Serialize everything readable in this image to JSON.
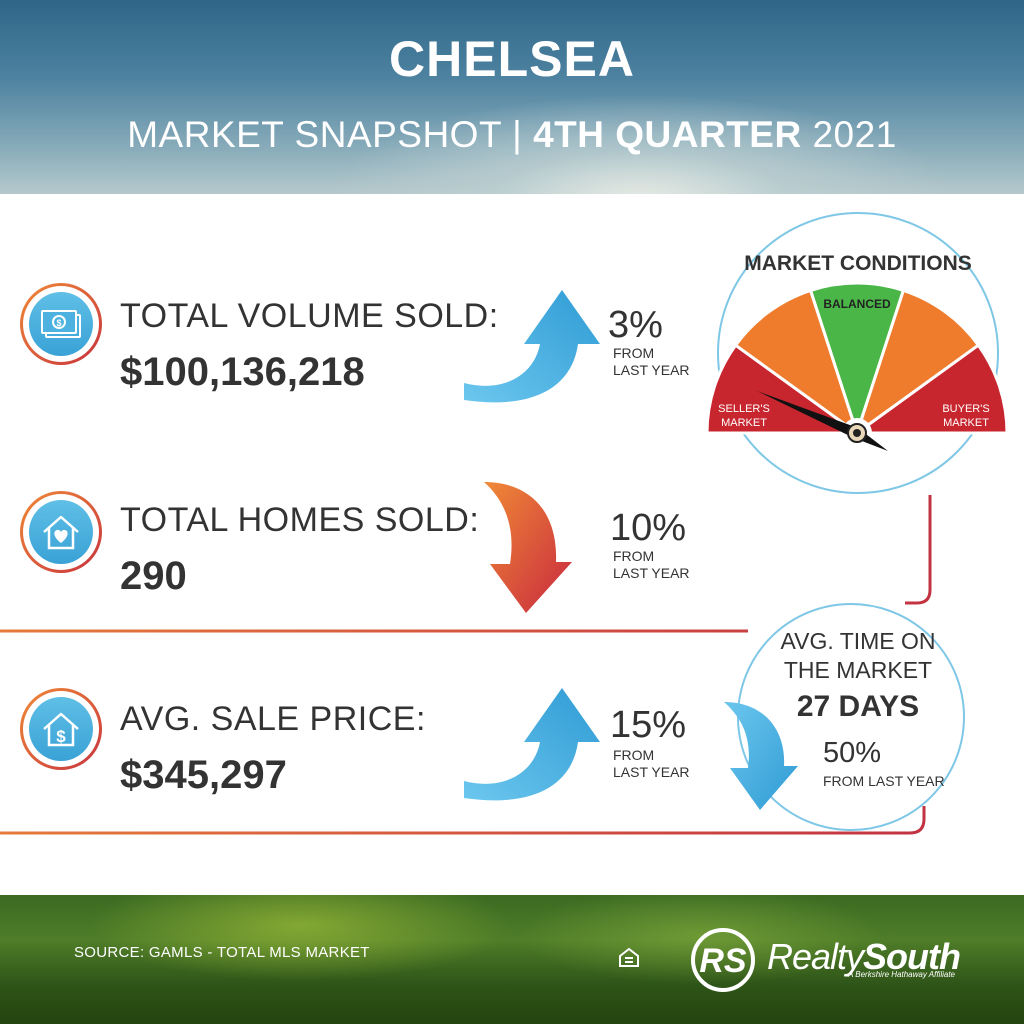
{
  "header": {
    "city": "CHELSEA",
    "subtitle_part1": "MARKET SNAPSHOT | ",
    "subtitle_bold": "4TH QUARTER",
    "subtitle_part2": " 2021"
  },
  "stats": [
    {
      "label": "TOTAL VOLUME SOLD:",
      "value": "$100,136,218",
      "change": "3%",
      "change_sub_1": "FROM",
      "change_sub_2": "LAST YEAR",
      "direction": "up",
      "icon": "cash-icon"
    },
    {
      "label": "TOTAL HOMES SOLD:",
      "value": "290",
      "change": "10%",
      "change_sub_1": "FROM",
      "change_sub_2": "LAST YEAR",
      "direction": "down",
      "icon": "house-heart-icon"
    },
    {
      "label": "AVG. SALE PRICE:",
      "value": "$345,297",
      "change": "15%",
      "change_sub_1": "FROM",
      "change_sub_2": "LAST YEAR",
      "direction": "up",
      "icon": "house-dollar-icon"
    }
  ],
  "market_conditions": {
    "title": "MARKET CONDITIONS",
    "balanced": "BALANCED",
    "seller_1": "SELLER'S",
    "seller_2": "MARKET",
    "buyer_1": "BUYER'S",
    "buyer_2": "MARKET",
    "indicator": "seller"
  },
  "time_on_market": {
    "label_1": "AVG. TIME ON",
    "label_2": "THE MARKET",
    "days": "27 DAYS",
    "change": "50%",
    "change_sub": "FROM LAST YEAR",
    "direction": "down"
  },
  "footer": {
    "source": "SOURCE: GAMLS - TOTAL MLS MARKET",
    "logo_mark": "RS",
    "logo_realty": "Realty",
    "logo_south": "South",
    "logo_tagline": "A Berkshire Hathaway Affiliate"
  },
  "colors": {
    "blue_arrow": "#48b3e2",
    "red_arrow": "#d23a4a",
    "orange": "#ef7b2d",
    "green": "#4bb648",
    "red": "#c8262f",
    "accent_line": "#c23342"
  }
}
